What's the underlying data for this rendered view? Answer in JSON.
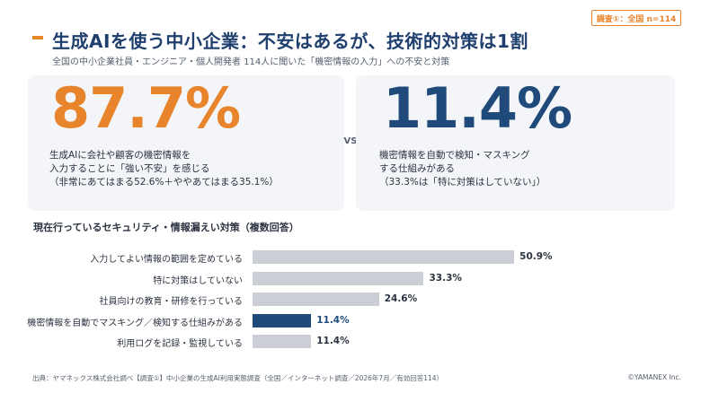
{
  "header": {
    "title": "生成AIを使う中小企業：不安はあるが、技術的対策は1割",
    "subtitle": "全国の中小企業社員・エンジニア・個人開発者 114人に聞いた「機密情報の入力」への不安と対策",
    "badge": "調査①：全国 n=114"
  },
  "cards": {
    "left": {
      "value": "87.7%",
      "lines": [
        "生成AIに会社や顧客の機密情報を",
        "入力することに「強い不安」を感じる",
        "（非常にあてはまる52.6%＋ややあてはまる35.1%）"
      ]
    },
    "vs": "VS",
    "right": {
      "value": "11.4%",
      "lines": [
        "機密情報を自動で検知・マスキング",
        "する仕組みがある",
        "（33.3%は「特に対策はしていない」）"
      ]
    }
  },
  "colors": {
    "accent": "#e8842c",
    "navy": "#1f4a7a",
    "bar": "#cbced4"
  },
  "chart_data": {
    "type": "bar",
    "orientation": "horizontal",
    "title": "現在行っているセキュリティ・情報漏えい対策（複数回答）",
    "categories": [
      "入力してよい情報の範囲を定めている",
      "特に対策はしていない",
      "社員向けの教育・研修を行っている",
      "機密情報を自動でマスキング／検知する仕組みがある",
      "利用ログを記録・監視している"
    ],
    "values": [
      50.9,
      33.3,
      24.6,
      11.4,
      11.4
    ],
    "value_labels": [
      "50.9%",
      "33.3%",
      "24.6%",
      "11.4%",
      "11.4%"
    ],
    "highlight_index": 3,
    "unit": "%"
  },
  "footer": {
    "source": "出典：ヤマネックス株式会社調べ【調査①】中小企業の生成AI利用実態調査（全国／インターネット調査／2026年7月／有効回答114）",
    "copyright": "©YAMANEX Inc."
  }
}
